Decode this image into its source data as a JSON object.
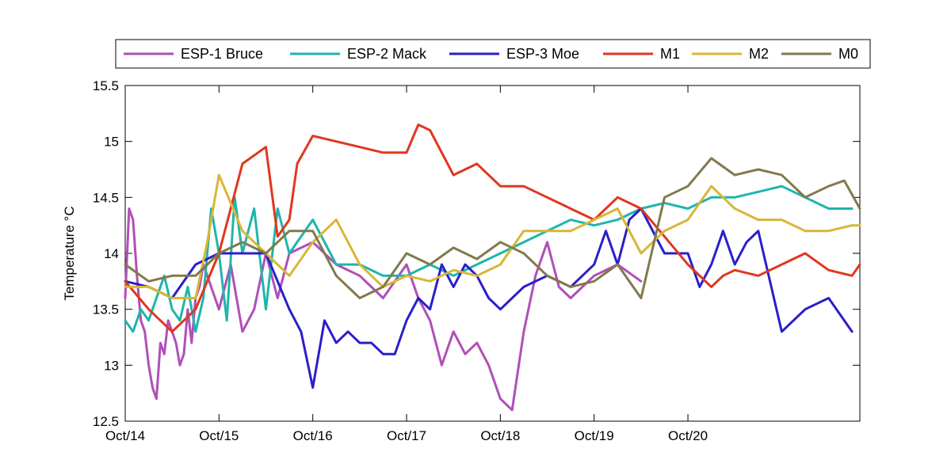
{
  "chart_data": {
    "type": "line",
    "title": "",
    "xlabel": "",
    "ylabel": "Temperature °C",
    "x_axis": {
      "type": "date",
      "xlim": [
        "2014-10-14",
        "2014-10-21T20:00"
      ],
      "tick_dates": [
        "2014-10-14",
        "2014-10-15",
        "2014-10-16",
        "2014-10-17",
        "2014-10-18",
        "2014-10-19",
        "2014-10-20"
      ],
      "tick_labels": [
        "Oct/14",
        "Oct/15",
        "Oct/16",
        "Oct/17",
        "Oct/18",
        "Oct/19",
        "Oct/20"
      ]
    },
    "y_axis": {
      "ylim": [
        12.5,
        15.5
      ],
      "ticks": [
        12.5,
        13,
        13.5,
        14,
        14.5,
        15,
        15.5
      ],
      "tick_labels": [
        "12.5",
        "13",
        "13.5",
        "14",
        "14.5",
        "15",
        "15.5"
      ]
    },
    "grid": false,
    "legend": {
      "placement": "top-outside",
      "orientation": "horizontal"
    },
    "series": [
      {
        "name": "ESP-1 Bruce",
        "color": "#b04fb8",
        "x": [
          "2014-10-14T00:00",
          "2014-10-14T01:00",
          "2014-10-14T02:00",
          "2014-10-14T03:00",
          "2014-10-14T04:00",
          "2014-10-14T05:00",
          "2014-10-14T06:00",
          "2014-10-14T07:00",
          "2014-10-14T08:00",
          "2014-10-14T09:00",
          "2014-10-14T10:00",
          "2014-10-14T11:00",
          "2014-10-14T12:00",
          "2014-10-14T13:00",
          "2014-10-14T14:00",
          "2014-10-14T15:00",
          "2014-10-14T16:00",
          "2014-10-14T17:00",
          "2014-10-14T18:00",
          "2014-10-14T19:00",
          "2014-10-14T20:00",
          "2014-10-15T00:00",
          "2014-10-15T03:00",
          "2014-10-15T06:00",
          "2014-10-15T09:00",
          "2014-10-15T12:00",
          "2014-10-15T15:00",
          "2014-10-15T18:00",
          "2014-10-16T00:00",
          "2014-10-16T06:00",
          "2014-10-16T12:00",
          "2014-10-16T18:00",
          "2014-10-17T00:00",
          "2014-10-17T03:00",
          "2014-10-17T06:00",
          "2014-10-17T09:00",
          "2014-10-17T12:00",
          "2014-10-17T15:00",
          "2014-10-17T18:00",
          "2014-10-17T21:00",
          "2014-10-18T00:00",
          "2014-10-18T03:00",
          "2014-10-18T06:00",
          "2014-10-18T09:00",
          "2014-10-18T12:00",
          "2014-10-18T15:00",
          "2014-10-18T18:00",
          "2014-10-19T00:00",
          "2014-10-19T06:00",
          "2014-10-19T12:00"
        ],
        "values": [
          13.6,
          14.4,
          14.3,
          13.8,
          13.4,
          13.3,
          13.0,
          12.8,
          12.7,
          13.2,
          13.1,
          13.4,
          13.3,
          13.2,
          13.0,
          13.1,
          13.5,
          13.2,
          13.6,
          13.7,
          13.9,
          13.5,
          13.9,
          13.3,
          13.5,
          14.0,
          13.6,
          14.0,
          14.1,
          13.9,
          13.8,
          13.6,
          13.9,
          13.6,
          13.4,
          13.0,
          13.3,
          13.1,
          13.2,
          13.0,
          12.7,
          12.6,
          13.3,
          13.8,
          14.1,
          13.7,
          13.6,
          13.8,
          13.9,
          13.75
        ]
      },
      {
        "name": "ESP-2 Mack",
        "color": "#1fb5ac",
        "x": [
          "2014-10-14T00:00",
          "2014-10-14T02:00",
          "2014-10-14T04:00",
          "2014-10-14T06:00",
          "2014-10-14T08:00",
          "2014-10-14T10:00",
          "2014-10-14T12:00",
          "2014-10-14T14:00",
          "2014-10-14T16:00",
          "2014-10-14T18:00",
          "2014-10-14T20:00",
          "2014-10-14T22:00",
          "2014-10-15T00:00",
          "2014-10-15T02:00",
          "2014-10-15T04:00",
          "2014-10-15T06:00",
          "2014-10-15T09:00",
          "2014-10-15T12:00",
          "2014-10-15T15:00",
          "2014-10-15T18:00",
          "2014-10-16T00:00",
          "2014-10-16T06:00",
          "2014-10-16T12:00",
          "2014-10-16T18:00",
          "2014-10-17T00:00",
          "2014-10-17T06:00",
          "2014-10-17T12:00",
          "2014-10-17T18:00",
          "2014-10-18T00:00",
          "2014-10-18T06:00",
          "2014-10-18T12:00",
          "2014-10-18T18:00",
          "2014-10-19T00:00",
          "2014-10-19T06:00",
          "2014-10-19T12:00",
          "2014-10-19T18:00",
          "2014-10-20T00:00",
          "2014-10-20T06:00",
          "2014-10-20T12:00",
          "2014-10-20T18:00",
          "2014-10-21T00:00",
          "2014-10-21T06:00",
          "2014-10-21T12:00",
          "2014-10-21T18:00"
        ],
        "values": [
          13.4,
          13.3,
          13.5,
          13.4,
          13.6,
          13.8,
          13.5,
          13.4,
          13.7,
          13.3,
          13.6,
          14.4,
          14.0,
          13.4,
          14.5,
          14.0,
          14.4,
          13.5,
          14.4,
          14.0,
          14.3,
          13.9,
          13.9,
          13.8,
          13.8,
          13.9,
          13.8,
          13.9,
          14.0,
          14.1,
          14.2,
          14.3,
          14.25,
          14.3,
          14.4,
          14.45,
          14.4,
          14.5,
          14.5,
          14.55,
          14.6,
          14.5,
          14.4,
          14.4
        ]
      },
      {
        "name": "ESP-3 Moe",
        "color": "#2a1fc9",
        "x": [
          "2014-10-14T00:00",
          "2014-10-14T06:00",
          "2014-10-14T12:00",
          "2014-10-14T18:00",
          "2014-10-15T00:00",
          "2014-10-15T06:00",
          "2014-10-15T12:00",
          "2014-10-15T18:00",
          "2014-10-15T21:00",
          "2014-10-16T00:00",
          "2014-10-16T03:00",
          "2014-10-16T06:00",
          "2014-10-16T09:00",
          "2014-10-16T12:00",
          "2014-10-16T15:00",
          "2014-10-16T18:00",
          "2014-10-16T21:00",
          "2014-10-17T00:00",
          "2014-10-17T03:00",
          "2014-10-17T06:00",
          "2014-10-17T09:00",
          "2014-10-17T12:00",
          "2014-10-17T15:00",
          "2014-10-17T18:00",
          "2014-10-17T21:00",
          "2014-10-18T00:00",
          "2014-10-18T06:00",
          "2014-10-18T12:00",
          "2014-10-18T18:00",
          "2014-10-19T00:00",
          "2014-10-19T03:00",
          "2014-10-19T06:00",
          "2014-10-19T09:00",
          "2014-10-19T12:00",
          "2014-10-19T18:00",
          "2014-10-20T00:00",
          "2014-10-20T03:00",
          "2014-10-20T06:00",
          "2014-10-20T09:00",
          "2014-10-20T12:00",
          "2014-10-20T15:00",
          "2014-10-20T18:00",
          "2014-10-21T00:00",
          "2014-10-21T06:00",
          "2014-10-21T12:00",
          "2014-10-21T18:00"
        ],
        "values": [
          13.75,
          13.7,
          13.6,
          13.9,
          14.0,
          14.0,
          14.0,
          13.5,
          13.3,
          12.8,
          13.4,
          13.2,
          13.3,
          13.2,
          13.2,
          13.1,
          13.1,
          13.4,
          13.6,
          13.5,
          13.9,
          13.7,
          13.9,
          13.8,
          13.6,
          13.5,
          13.7,
          13.8,
          13.7,
          13.9,
          14.2,
          13.9,
          14.3,
          14.4,
          14.0,
          14.0,
          13.7,
          13.9,
          14.2,
          13.9,
          14.1,
          14.2,
          13.3,
          13.5,
          13.6,
          13.3
        ]
      },
      {
        "name": "M1",
        "color": "#e2361e",
        "x": [
          "2014-10-14T00:00",
          "2014-10-14T06:00",
          "2014-10-14T12:00",
          "2014-10-14T18:00",
          "2014-10-15T00:00",
          "2014-10-15T06:00",
          "2014-10-15T12:00",
          "2014-10-15T15:00",
          "2014-10-15T18:00",
          "2014-10-15T20:00",
          "2014-10-16T00:00",
          "2014-10-16T06:00",
          "2014-10-16T12:00",
          "2014-10-16T18:00",
          "2014-10-17T00:00",
          "2014-10-17T03:00",
          "2014-10-17T06:00",
          "2014-10-17T12:00",
          "2014-10-17T18:00",
          "2014-10-18T00:00",
          "2014-10-18T06:00",
          "2014-10-18T12:00",
          "2014-10-18T18:00",
          "2014-10-19T00:00",
          "2014-10-19T06:00",
          "2014-10-19T12:00",
          "2014-10-19T18:00",
          "2014-10-20T00:00",
          "2014-10-20T06:00",
          "2014-10-20T09:00",
          "2014-10-20T12:00",
          "2014-10-20T18:00",
          "2014-10-21T00:00",
          "2014-10-21T06:00",
          "2014-10-21T12:00",
          "2014-10-21T18:00",
          "2014-10-21T20:00"
        ],
        "values": [
          13.75,
          13.5,
          13.3,
          13.5,
          14.0,
          14.8,
          14.95,
          14.15,
          14.3,
          14.8,
          15.05,
          15.0,
          14.95,
          14.9,
          14.9,
          15.15,
          15.1,
          14.7,
          14.8,
          14.6,
          14.6,
          14.5,
          14.4,
          14.3,
          14.5,
          14.4,
          14.15,
          13.9,
          13.7,
          13.8,
          13.85,
          13.8,
          13.9,
          14.0,
          13.85,
          13.8,
          13.9
        ]
      },
      {
        "name": "M2",
        "color": "#d9b637",
        "x": [
          "2014-10-14T00:00",
          "2014-10-14T06:00",
          "2014-10-14T12:00",
          "2014-10-14T18:00",
          "2014-10-14T21:00",
          "2014-10-15T00:00",
          "2014-10-15T06:00",
          "2014-10-15T12:00",
          "2014-10-15T18:00",
          "2014-10-16T00:00",
          "2014-10-16T06:00",
          "2014-10-16T12:00",
          "2014-10-16T18:00",
          "2014-10-17T00:00",
          "2014-10-17T06:00",
          "2014-10-17T12:00",
          "2014-10-17T18:00",
          "2014-10-18T00:00",
          "2014-10-18T06:00",
          "2014-10-18T12:00",
          "2014-10-18T18:00",
          "2014-10-19T00:00",
          "2014-10-19T06:00",
          "2014-10-19T12:00",
          "2014-10-19T18:00",
          "2014-10-20T00:00",
          "2014-10-20T06:00",
          "2014-10-20T12:00",
          "2014-10-20T18:00",
          "2014-10-21T00:00",
          "2014-10-21T06:00",
          "2014-10-21T12:00",
          "2014-10-21T18:00",
          "2014-10-21T20:00"
        ],
        "values": [
          13.7,
          13.7,
          13.6,
          13.6,
          14.1,
          14.7,
          14.2,
          14.0,
          13.8,
          14.1,
          14.3,
          13.9,
          13.7,
          13.8,
          13.75,
          13.85,
          13.8,
          13.9,
          14.2,
          14.2,
          14.2,
          14.3,
          14.4,
          14.0,
          14.2,
          14.3,
          14.6,
          14.4,
          14.3,
          14.3,
          14.2,
          14.2,
          14.25,
          14.25
        ]
      },
      {
        "name": "M0",
        "color": "#827a4c",
        "x": [
          "2014-10-14T00:00",
          "2014-10-14T06:00",
          "2014-10-14T12:00",
          "2014-10-14T18:00",
          "2014-10-15T00:00",
          "2014-10-15T06:00",
          "2014-10-15T12:00",
          "2014-10-15T18:00",
          "2014-10-16T00:00",
          "2014-10-16T06:00",
          "2014-10-16T12:00",
          "2014-10-16T18:00",
          "2014-10-17T00:00",
          "2014-10-17T06:00",
          "2014-10-17T12:00",
          "2014-10-17T18:00",
          "2014-10-18T00:00",
          "2014-10-18T06:00",
          "2014-10-18T12:00",
          "2014-10-18T18:00",
          "2014-10-19T00:00",
          "2014-10-19T06:00",
          "2014-10-19T12:00",
          "2014-10-19T18:00",
          "2014-10-20T00:00",
          "2014-10-20T06:00",
          "2014-10-20T12:00",
          "2014-10-20T18:00",
          "2014-10-21T00:00",
          "2014-10-21T06:00",
          "2014-10-21T12:00",
          "2014-10-21T16:00",
          "2014-10-21T20:00"
        ],
        "values": [
          13.9,
          13.75,
          13.8,
          13.8,
          14.0,
          14.1,
          14.0,
          14.2,
          14.2,
          13.8,
          13.6,
          13.7,
          14.0,
          13.9,
          14.05,
          13.95,
          14.1,
          14.0,
          13.8,
          13.7,
          13.75,
          13.9,
          13.6,
          14.5,
          14.6,
          14.85,
          14.7,
          14.75,
          14.7,
          14.5,
          14.6,
          14.65,
          14.4
        ]
      }
    ]
  }
}
